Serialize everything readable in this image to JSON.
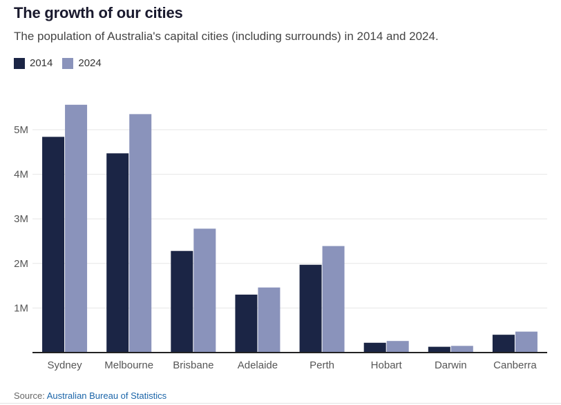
{
  "header": {
    "title": "The growth of our cities",
    "subtitle": "The population of Australia's capital cities (including surrounds) in 2014 and 2024."
  },
  "legend": {
    "items": [
      {
        "label": "2014",
        "color": "#1b2545"
      },
      {
        "label": "2024",
        "color": "#8a93bb"
      }
    ]
  },
  "chart_data": {
    "type": "bar",
    "title": "The growth of our cities",
    "xlabel": "",
    "ylabel": "",
    "categories": [
      "Sydney",
      "Melbourne",
      "Brisbane",
      "Adelaide",
      "Perth",
      "Hobart",
      "Darwin",
      "Canberra"
    ],
    "series": [
      {
        "name": "2014",
        "color": "#1b2545",
        "values": [
          4840000,
          4470000,
          2280000,
          1300000,
          1970000,
          220000,
          130000,
          400000
        ]
      },
      {
        "name": "2024",
        "color": "#8a93bb",
        "values": [
          5560000,
          5350000,
          2780000,
          1460000,
          2390000,
          260000,
          150000,
          470000
        ]
      }
    ],
    "ylim": [
      0,
      5800000
    ],
    "yticks": [
      1000000,
      2000000,
      3000000,
      4000000,
      5000000
    ],
    "ytick_labels": [
      "1M",
      "2M",
      "3M",
      "4M",
      "5M"
    ],
    "grid": true,
    "legend_position": "top-left"
  },
  "footer": {
    "source_prefix": "Source:",
    "source_name": "Australian Bureau of Statistics"
  }
}
